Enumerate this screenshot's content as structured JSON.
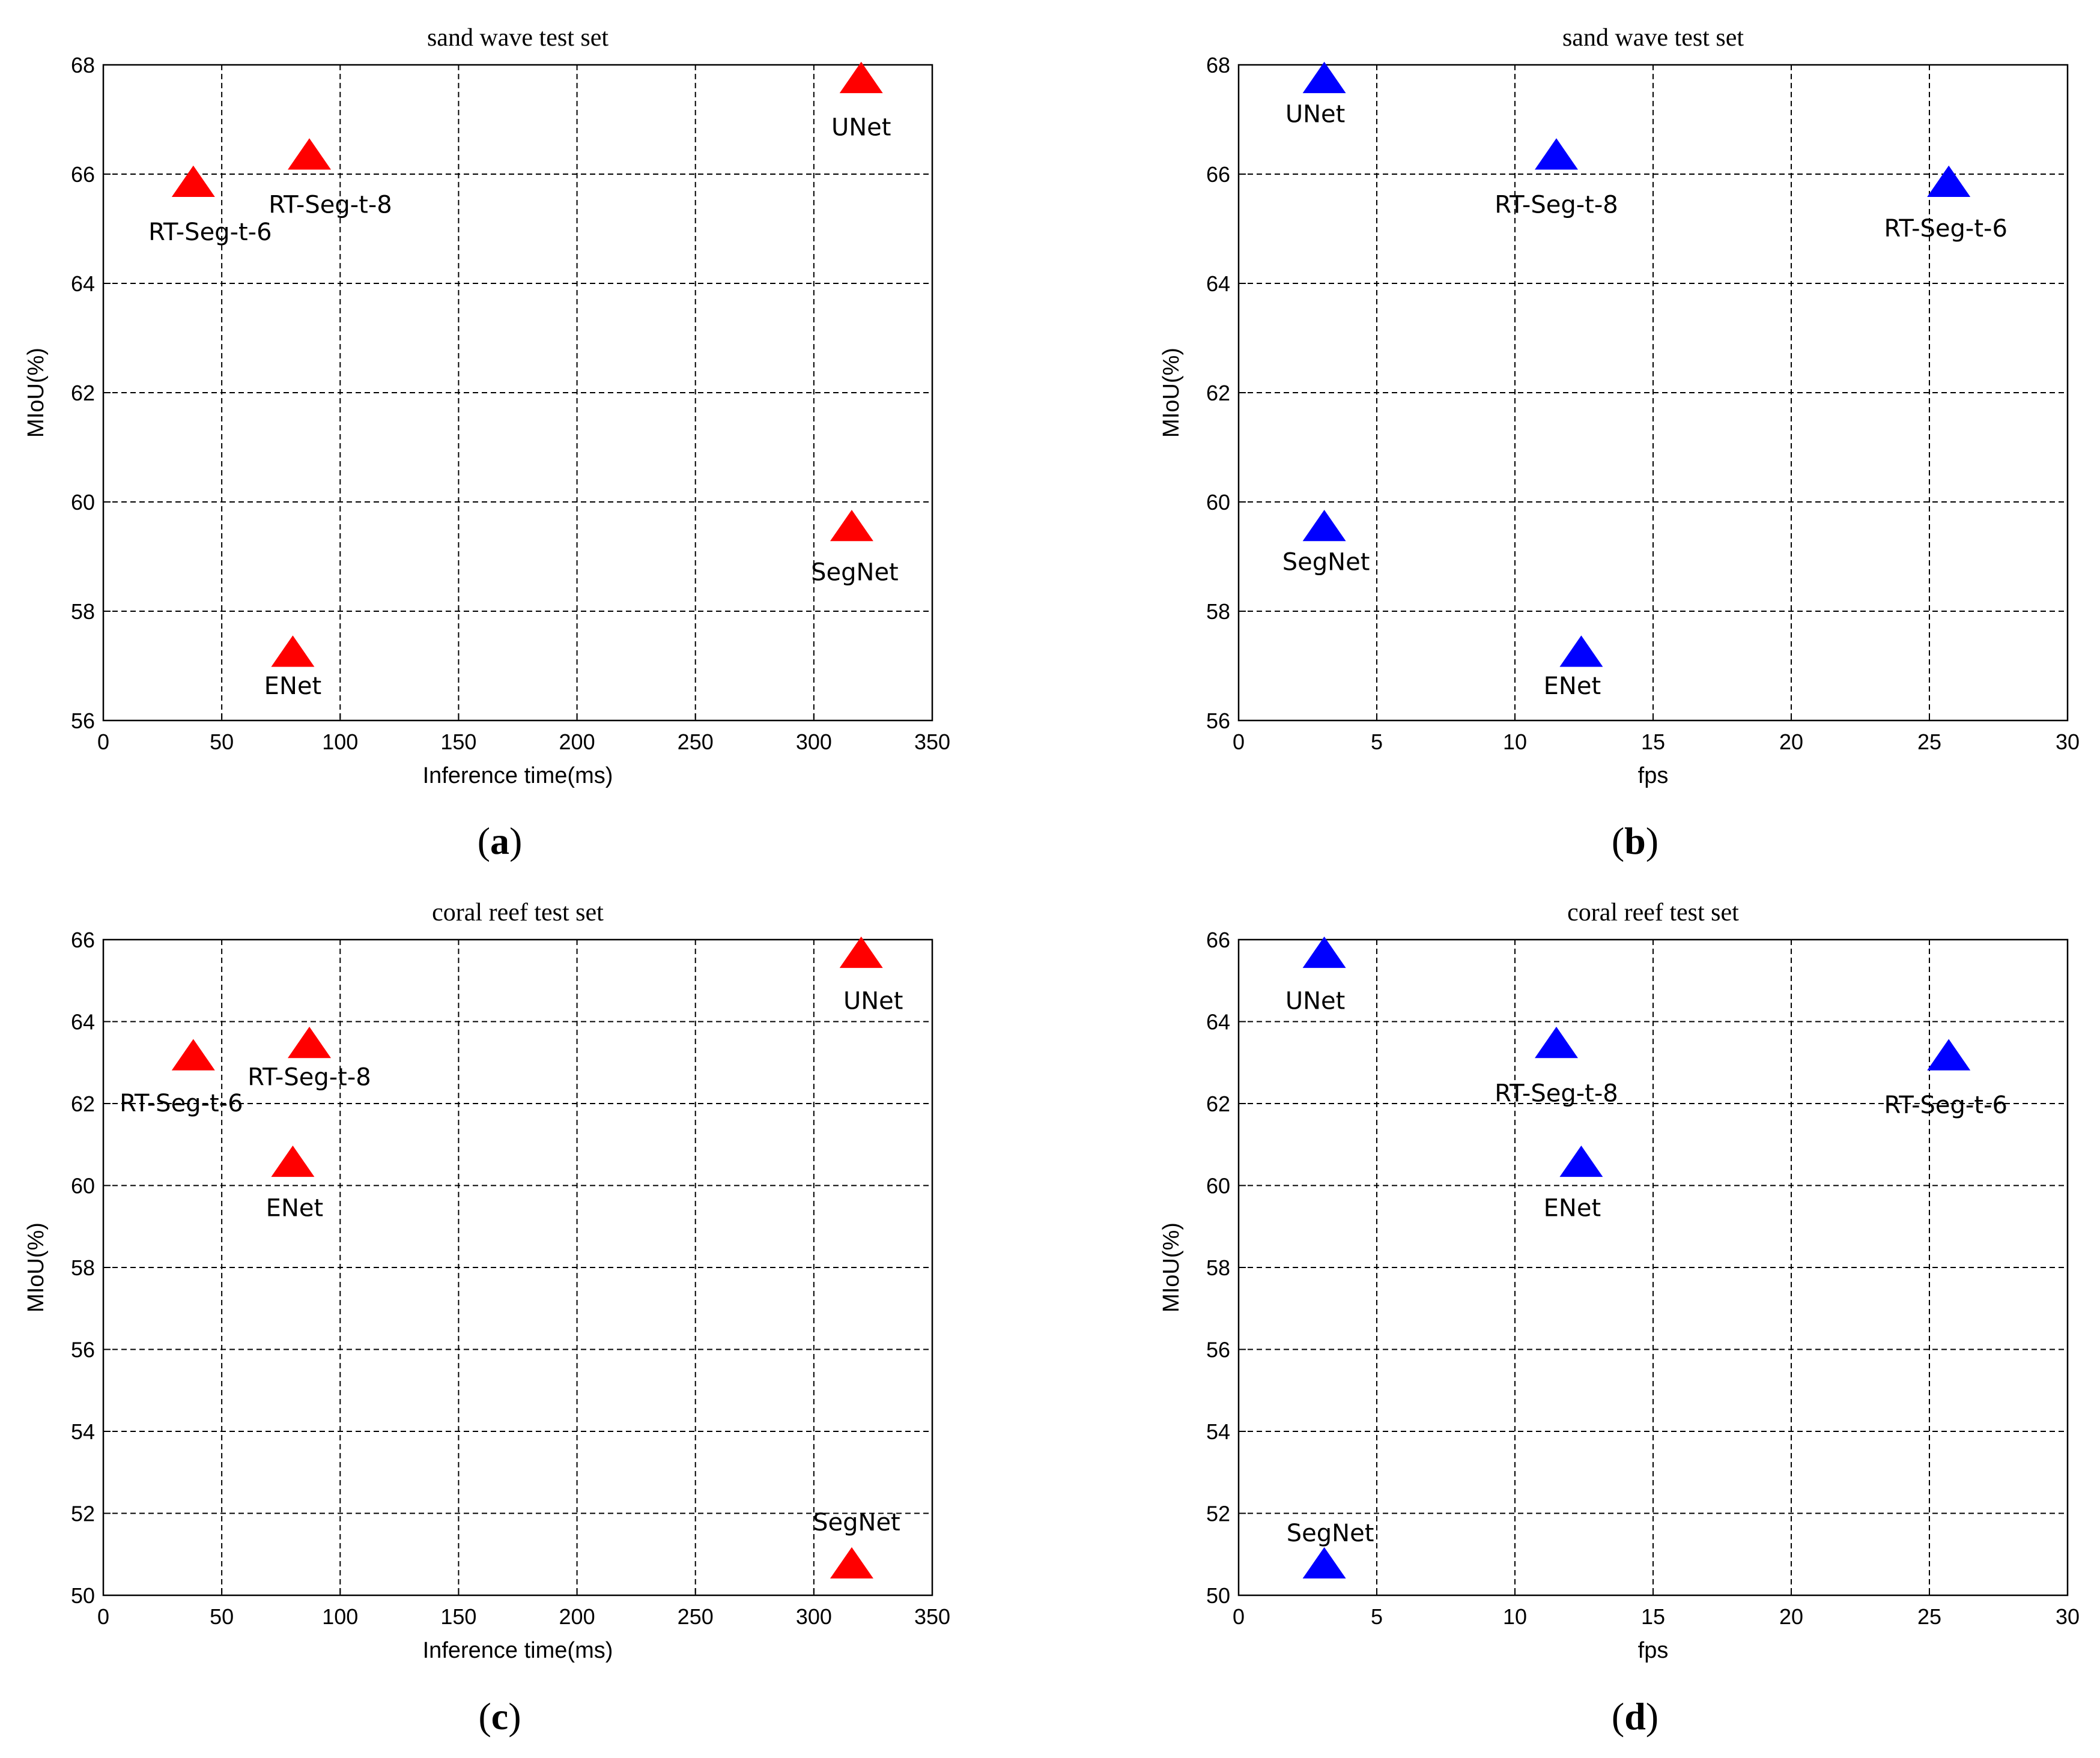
{
  "chart_data": [
    {
      "id": "a",
      "type": "scatter",
      "title": "sand wave test set",
      "xlabel": "Inference time(ms)",
      "ylabel": "MIoU(%)",
      "xlim": [
        0,
        350
      ],
      "ylim": [
        56,
        68
      ],
      "xticks": [
        "0",
        "50",
        "100",
        "150",
        "200",
        "250",
        "300",
        "350"
      ],
      "yticks": [
        "56",
        "58",
        "60",
        "62",
        "64",
        "66",
        "68"
      ],
      "grid": true,
      "marker": "triangle",
      "color": "#ff0000",
      "caption": "a",
      "points": [
        {
          "name": "UNet",
          "x": 320,
          "y": 67.7
        },
        {
          "name": "RT-Seg-t-8",
          "x": 87,
          "y": 66.3
        },
        {
          "name": "RT-Seg-t-6",
          "x": 38,
          "y": 65.8
        },
        {
          "name": "SegNet",
          "x": 316,
          "y": 59.5
        },
        {
          "name": "ENet",
          "x": 80,
          "y": 57.2
        }
      ]
    },
    {
      "id": "b",
      "type": "scatter",
      "title": "sand wave test set",
      "xlabel": "fps",
      "ylabel": "MIoU(%)",
      "xlim": [
        0,
        30
      ],
      "ylim": [
        56,
        68
      ],
      "xticks": [
        "0",
        "5",
        "10",
        "15",
        "20",
        "25",
        "30"
      ],
      "yticks": [
        "56",
        "58",
        "60",
        "62",
        "64",
        "66",
        "68"
      ],
      "grid": true,
      "marker": "triangle",
      "color": "#0000ff",
      "caption": "b",
      "points": [
        {
          "name": "UNet",
          "x": 3.1,
          "y": 67.7
        },
        {
          "name": "RT-Seg-t-8",
          "x": 11.5,
          "y": 66.3
        },
        {
          "name": "RT-Seg-t-6",
          "x": 25.7,
          "y": 65.8
        },
        {
          "name": "SegNet",
          "x": 3.1,
          "y": 59.5
        },
        {
          "name": "ENet",
          "x": 12.4,
          "y": 57.2
        }
      ]
    },
    {
      "id": "c",
      "type": "scatter",
      "title": "coral reef test set",
      "xlabel": "Inference time(ms)",
      "ylabel": "MIoU(%)",
      "xlim": [
        0,
        350
      ],
      "ylim": [
        50,
        66
      ],
      "xticks": [
        "0",
        "50",
        "100",
        "150",
        "200",
        "250",
        "300",
        "350"
      ],
      "yticks": [
        "50",
        "52",
        "54",
        "56",
        "58",
        "60",
        "62",
        "64",
        "66"
      ],
      "grid": true,
      "marker": "triangle",
      "color": "#ff0000",
      "caption": "c",
      "points": [
        {
          "name": "UNet",
          "x": 320,
          "y": 65.6
        },
        {
          "name": "RT-Seg-t-8",
          "x": 87,
          "y": 63.4
        },
        {
          "name": "RT-Seg-t-6",
          "x": 38,
          "y": 63.1
        },
        {
          "name": "ENet",
          "x": 80,
          "y": 60.5
        },
        {
          "name": "SegNet",
          "x": 316,
          "y": 50.7
        }
      ]
    },
    {
      "id": "d",
      "type": "scatter",
      "title": "coral reef test set",
      "xlabel": "fps",
      "ylabel": "MIoU(%)",
      "xlim": [
        0,
        30
      ],
      "ylim": [
        50,
        66
      ],
      "xticks": [
        "0",
        "5",
        "10",
        "15",
        "20",
        "25",
        "30"
      ],
      "yticks": [
        "50",
        "52",
        "54",
        "56",
        "58",
        "60",
        "62",
        "64",
        "66"
      ],
      "grid": true,
      "marker": "triangle",
      "color": "#0000ff",
      "caption": "d",
      "points": [
        {
          "name": "UNet",
          "x": 3.1,
          "y": 65.6
        },
        {
          "name": "RT-Seg-t-8",
          "x": 11.5,
          "y": 63.4
        },
        {
          "name": "RT-Seg-t-6",
          "x": 25.7,
          "y": 63.1
        },
        {
          "name": "ENet",
          "x": 12.4,
          "y": 60.5
        },
        {
          "name": "SegNet",
          "x": 3.1,
          "y": 50.7
        }
      ]
    }
  ]
}
